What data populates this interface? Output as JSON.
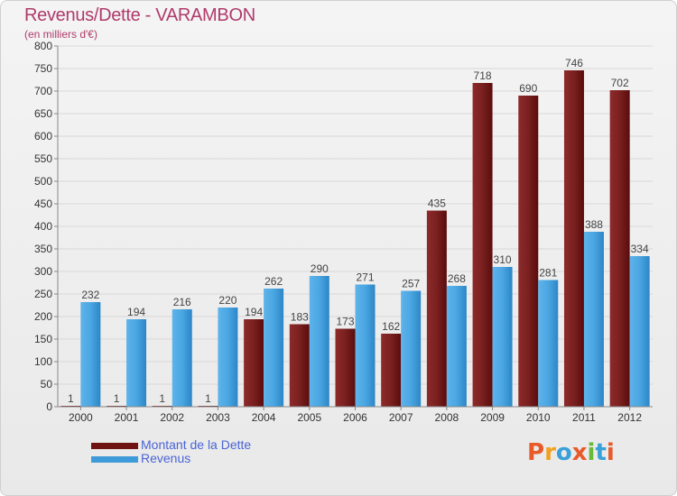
{
  "title": "Revenus/Dette - VARAMBON",
  "subtitle": "(en milliers d'€)",
  "logo_text": "Proxiti",
  "colors": {
    "debt": "#6e1212",
    "revenue": "#3e9bd9",
    "title": "#b03a6a",
    "legend_text": "#4a64d6"
  },
  "chart_data": {
    "type": "bar",
    "title": "Revenus/Dette - VARAMBON",
    "ylabel": "(en milliers d'€)",
    "ylim": [
      0,
      800
    ],
    "yticks": [
      0,
      50,
      100,
      150,
      200,
      250,
      300,
      350,
      400,
      450,
      500,
      550,
      600,
      650,
      700,
      750,
      800
    ],
    "grid": true,
    "legend_position": "bottom-left",
    "categories": [
      "2000",
      "2001",
      "2002",
      "2003",
      "2004",
      "2005",
      "2006",
      "2007",
      "2008",
      "2009",
      "2010",
      "2011",
      "2012"
    ],
    "series": [
      {
        "name": "Montant de la Dette",
        "color": "#6e1212",
        "values": [
          1,
          1,
          1,
          1,
          194,
          183,
          173,
          162,
          435,
          718,
          690,
          746,
          702
        ]
      },
      {
        "name": "Revenus",
        "color": "#3e9bd9",
        "values": [
          232,
          194,
          216,
          220,
          262,
          290,
          271,
          257,
          268,
          310,
          281,
          388,
          334
        ]
      }
    ]
  }
}
